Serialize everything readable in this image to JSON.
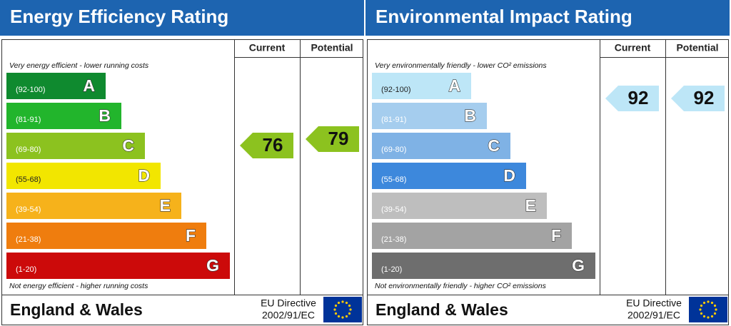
{
  "panels": [
    {
      "title": "Energy Efficiency Rating",
      "current_label": "Current",
      "potential_label": "Potential",
      "top_note": "Very energy efficient - lower running costs",
      "bottom_note": "Not energy efficient - higher running costs",
      "bands": [
        {
          "range": "(92-100)",
          "letter": "A",
          "color": "#0f8a2f"
        },
        {
          "range": "(81-91)",
          "letter": "B",
          "color": "#22b52c"
        },
        {
          "range": "(69-80)",
          "letter": "C",
          "color": "#8cc21f"
        },
        {
          "range": "(55-68)",
          "letter": "D",
          "color": "#f2e600"
        },
        {
          "range": "(39-54)",
          "letter": "E",
          "color": "#f6b21b"
        },
        {
          "range": "(21-38)",
          "letter": "F",
          "color": "#ef7d0e"
        },
        {
          "range": "(1-20)",
          "letter": "G",
          "color": "#cc0a0a"
        }
      ],
      "current": "76",
      "potential": "79",
      "region": "England & Wales",
      "directive_1": "EU Directive",
      "directive_2": "2002/91/EC"
    },
    {
      "title": "Environmental Impact Rating",
      "current_label": "Current",
      "potential_label": "Potential",
      "top_note": "Very environmentally friendly - lower CO² emissions",
      "bottom_note": "Not environmentally friendly - higher CO² emissions",
      "bands": [
        {
          "range": "(92-100)",
          "letter": "A",
          "color": "#bde6f7"
        },
        {
          "range": "(81-91)",
          "letter": "B",
          "color": "#a5cdee"
        },
        {
          "range": "(69-80)",
          "letter": "C",
          "color": "#7fb2e5"
        },
        {
          "range": "(55-68)",
          "letter": "D",
          "color": "#3d88dc"
        },
        {
          "range": "(39-54)",
          "letter": "E",
          "color": "#bebebe"
        },
        {
          "range": "(21-38)",
          "letter": "F",
          "color": "#a3a3a3"
        },
        {
          "range": "(1-20)",
          "letter": "G",
          "color": "#6e6e6e"
        }
      ],
      "current": "92",
      "potential": "92",
      "region": "England & Wales",
      "directive_1": "EU Directive",
      "directive_2": "2002/91/EC"
    }
  ]
}
